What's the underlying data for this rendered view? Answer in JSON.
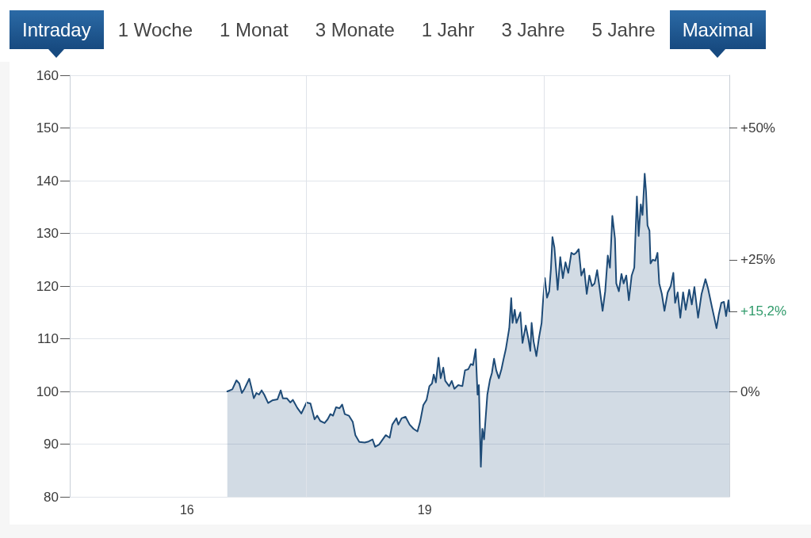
{
  "chart_data": {
    "type": "area",
    "annotations": [
      "Intraday",
      "1 Woche",
      "1 Monat",
      "3 Monate",
      "1 Jahr",
      "3 Jahre",
      "5 Jahre",
      "Maximal"
    ],
    "x": [
      "2017-01-03",
      "2017-01-26",
      "2017-02-14",
      "2017-02-27",
      "2017-03-11",
      "2017-03-23",
      "2017-04-14",
      "2017-04-23",
      "2017-05-05",
      "2017-05-17",
      "2017-05-29",
      "2017-06-10",
      "2017-06-22",
      "2017-07-10",
      "2017-07-29",
      "2017-08-22",
      "2017-09-06",
      "2017-09-16",
      "2017-10-04",
      "2017-10-20",
      "2017-11-01",
      "2017-11-21",
      "2017-12-10",
      "2018-01-03",
      "2018-01-21",
      "2018-02-09",
      "2018-02-21",
      "2018-03-07",
      "2018-03-27",
      "2018-04-10",
      "2018-04-23",
      "2018-05-05",
      "2018-05-19",
      "2018-06-04",
      "2018-06-16",
      "2018-06-28",
      "2018-07-17",
      "2018-08-04",
      "2018-08-16",
      "2018-09-03",
      "2018-09-28",
      "2018-10-16",
      "2018-11-03",
      "2018-11-15",
      "2018-12-03",
      "2019-01-03",
      "2019-01-21",
      "2019-02-02",
      "2019-02-21",
      "2019-03-02",
      "2019-03-17",
      "2019-04-04",
      "2019-04-23",
      "2019-05-11",
      "2019-05-29",
      "2019-06-10",
      "2019-06-25",
      "2019-07-10",
      "2019-07-23",
      "2019-08-04",
      "2019-08-12",
      "2019-08-22",
      "2019-09-03",
      "2019-09-13",
      "2019-09-25",
      "2019-10-04",
      "2019-10-22",
      "2019-11-03",
      "2019-11-15",
      "2019-12-03",
      "2019-12-22",
      "2020-01-03",
      "2020-01-18",
      "2020-01-30",
      "2020-02-09",
      "2020-02-21",
      "2020-03-01",
      "2020-03-07",
      "2020-03-16",
      "2020-03-23",
      "2020-03-31",
      "2020-04-15",
      "2020-04-27",
      "2020-05-06",
      "2020-05-16",
      "2020-05-26",
      "2020-06-07",
      "2020-06-19",
      "2020-06-28",
      "2020-07-09",
      "2020-07-25",
      "2020-08-03",
      "2020-08-09",
      "2020-08-19",
      "2020-08-27",
      "2020-09-08",
      "2020-09-14",
      "2020-09-24",
      "2020-10-09",
      "2020-10-21",
      "2020-10-30",
      "2020-11-05",
      "2020-11-14",
      "2020-11-27",
      "2020-12-09",
      "2020-12-21",
      "2020-12-27",
      "2021-01-05",
      "2021-01-15",
      "2021-01-25",
      "2021-02-02",
      "2021-02-09",
      "2021-02-18",
      "2021-03-05",
      "2021-03-17",
      "2021-03-29",
      "2021-04-10",
      "2021-04-23",
      "2021-05-07",
      "2021-05-19",
      "2021-05-29",
      "2021-06-10",
      "2021-06-22",
      "2021-07-05",
      "2021-07-17",
      "2021-07-29",
      "2021-08-10",
      "2021-08-22",
      "2021-09-03",
      "2021-09-13",
      "2021-09-28",
      "2021-10-10",
      "2021-10-22",
      "2021-11-01",
      "2021-11-12",
      "2021-11-24",
      "2021-11-30",
      "2021-12-12",
      "2021-12-24",
      "2022-01-03",
      "2022-01-15",
      "2022-01-27",
      "2022-02-09",
      "2022-02-21",
      "2022-03-05",
      "2022-03-13",
      "2022-03-23",
      "2022-03-31",
      "2022-04-10",
      "2022-04-16",
      "2022-04-23",
      "2022-05-02",
      "2022-05-07",
      "2022-05-17",
      "2022-05-29",
      "2022-06-08",
      "2022-06-16",
      "2022-06-28",
      "2022-07-10",
      "2022-07-25",
      "2022-08-08",
      "2022-08-20",
      "2022-08-28",
      "2022-09-09",
      "2022-09-21",
      "2022-10-04",
      "2022-10-16",
      "2022-11-01",
      "2022-11-13",
      "2022-11-25",
      "2022-12-12",
      "2022-12-28",
      "2023-01-15",
      "2023-01-27",
      "2023-02-14",
      "2023-02-23",
      "2023-03-07",
      "2023-03-17",
      "2023-03-29",
      "2023-04-10",
      "2023-04-20",
      "2023-05-01",
      "2023-05-05"
    ],
    "series": [
      {
        "color": "#1e4b77",
        "values": [
          100,
          100.4,
          102.1,
          101.5,
          99.7,
          100.5,
          102.4,
          100.9,
          98.7,
          99.7,
          99.4,
          100.2,
          99.4,
          97.8,
          98.3,
          98.5,
          100.2,
          98.7,
          98.7,
          97.9,
          98.4,
          96.9,
          95.8,
          97.9,
          97.7,
          94.7,
          95.4,
          94.4,
          94.0,
          94.7,
          95.7,
          95.4,
          97.0,
          96.8,
          97.5,
          95.7,
          95.4,
          94.2,
          91.7,
          90.4,
          90.3,
          90.5,
          90.9,
          89.5,
          89.9,
          91.7,
          91.2,
          93.7,
          94.9,
          93.7,
          94.9,
          95.2,
          93.7,
          92.9,
          92.4,
          94.2,
          97.4,
          98.4,
          101.0,
          101.5,
          103.2,
          101.7,
          106.4,
          102.5,
          104.5,
          102.0,
          101.0,
          102.0,
          100.5,
          101.2,
          101.0,
          104.0,
          104.2,
          105.2,
          105.0,
          108.0,
          99.4,
          101.2,
          85.7,
          92.9,
          90.9,
          99.4,
          102.2,
          103.5,
          106.2,
          104.0,
          102.5,
          104.2,
          106.0,
          108.0,
          112.0,
          117.7,
          113.0,
          115.5,
          113.0,
          114.3,
          115.0,
          109.2,
          112.5,
          110.0,
          107.7,
          113.0,
          109.5,
          106.7,
          110.2,
          113.0,
          116.8,
          121.5,
          117.8,
          119.0,
          123.3,
          129.3,
          127.3,
          119.3,
          125.5,
          121.5,
          124.5,
          122.5,
          126.3,
          126.0,
          126.3,
          127.0,
          122.0,
          123.3,
          118.5,
          122.0,
          120.0,
          120.5,
          123.0,
          120.0,
          115.3,
          119.0,
          125.8,
          123.5,
          133.3,
          129.0,
          120.5,
          119.0,
          122.3,
          120.5,
          122.0,
          117.3,
          122.0,
          123.5,
          137.0,
          129.5,
          135.5,
          133.5,
          141.3,
          138.0,
          131.5,
          130.5,
          124.3,
          125.0,
          124.8,
          126.3,
          120.5,
          118.5,
          115.3,
          118.8,
          120.0,
          122.5,
          116.8,
          118.8,
          114.0,
          118.8,
          115.5,
          119.3,
          116.5,
          119.8,
          114.0,
          118.5,
          121.3,
          119.5,
          116.0,
          114.3,
          112.0,
          114.5,
          116.8,
          117.0,
          114.3,
          117.3,
          115.2
        ]
      }
    ],
    "xlim": [
      "2015-01-08",
      "2023-05-05"
    ],
    "xticks": [
      {
        "value": "2016-07-01",
        "label": "16"
      },
      {
        "value": "2019-07-01",
        "label": "19"
      }
    ],
    "ylim": [
      80,
      160
    ],
    "yticks": [
      80,
      90,
      100,
      110,
      120,
      130,
      140,
      150,
      160
    ],
    "y2lim": [
      -20,
      60
    ],
    "y2ticks": [
      {
        "value": 0,
        "label": "0%"
      },
      {
        "value": 15.2,
        "label": "+15,2%"
      },
      {
        "value": 25,
        "label": "+25%"
      },
      {
        "value": 50,
        "label": "+50%"
      }
    ],
    "ref_lines": [
      {
        "axis": "x",
        "value": "2018-01-01",
        "color": "#dfe3e9"
      },
      {
        "axis": "x",
        "value": "2021-01-01",
        "color": "#dfe3e9"
      }
    ],
    "grid": "y"
  }
}
